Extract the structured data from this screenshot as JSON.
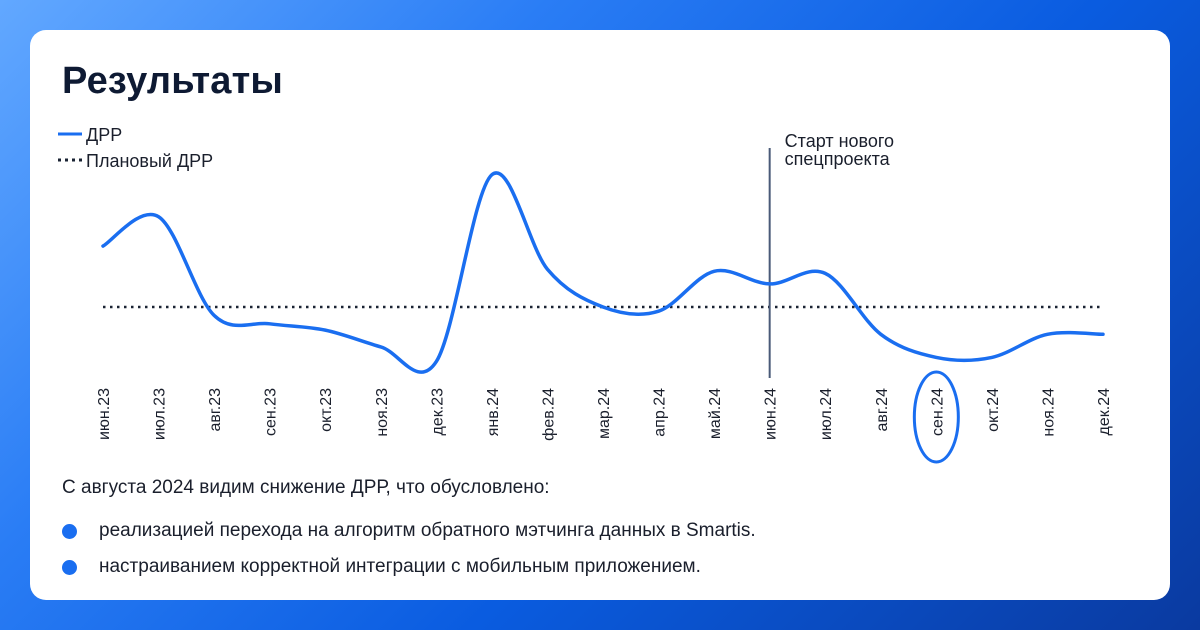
{
  "title": "Результаты",
  "chart_data": {
    "type": "line",
    "categories": [
      "июн.23",
      "июл.23",
      "авг.23",
      "сен.23",
      "окт.23",
      "ноя.23",
      "дек.23",
      "янв.24",
      "фев.24",
      "мар.24",
      "апр.24",
      "май.24",
      "июн.24",
      "июл.24",
      "авг.24",
      "сен.24",
      "окт.24",
      "ноя.24",
      "дек.24"
    ],
    "series": [
      {
        "name": "ДРР",
        "values": [
          59,
          73,
          26,
          22,
          19,
          11,
          4,
          93,
          48,
          30,
          28,
          47,
          41,
          46,
          17,
          6,
          6,
          17,
          17
        ]
      },
      {
        "name": "Плановый ДРР",
        "values": [
          30,
          30,
          30,
          30,
          30,
          30,
          30,
          30,
          30,
          30,
          30,
          30,
          30,
          30,
          30,
          30,
          30,
          30,
          30
        ]
      }
    ],
    "ylim": [
      0,
      100
    ],
    "grid": false,
    "legend": "top-left",
    "annotation": {
      "category": "июн.24",
      "text_lines": [
        "Старт нового",
        "спецпроекта"
      ]
    },
    "highlight_category": "сен.24",
    "colors": {
      "line": "#1a6ef0",
      "plan": "#1a2333",
      "marker_line": "#4a5a78",
      "highlight": "#1a6ef0"
    }
  },
  "summary": "С августа 2024 видим снижение ДРР, что обусловлено:",
  "bullets": [
    "реализацией перехода на алгоритм обратного мэтчинга данных в Smartis.",
    "настраиванием корректной интеграции с мобильным приложением."
  ]
}
